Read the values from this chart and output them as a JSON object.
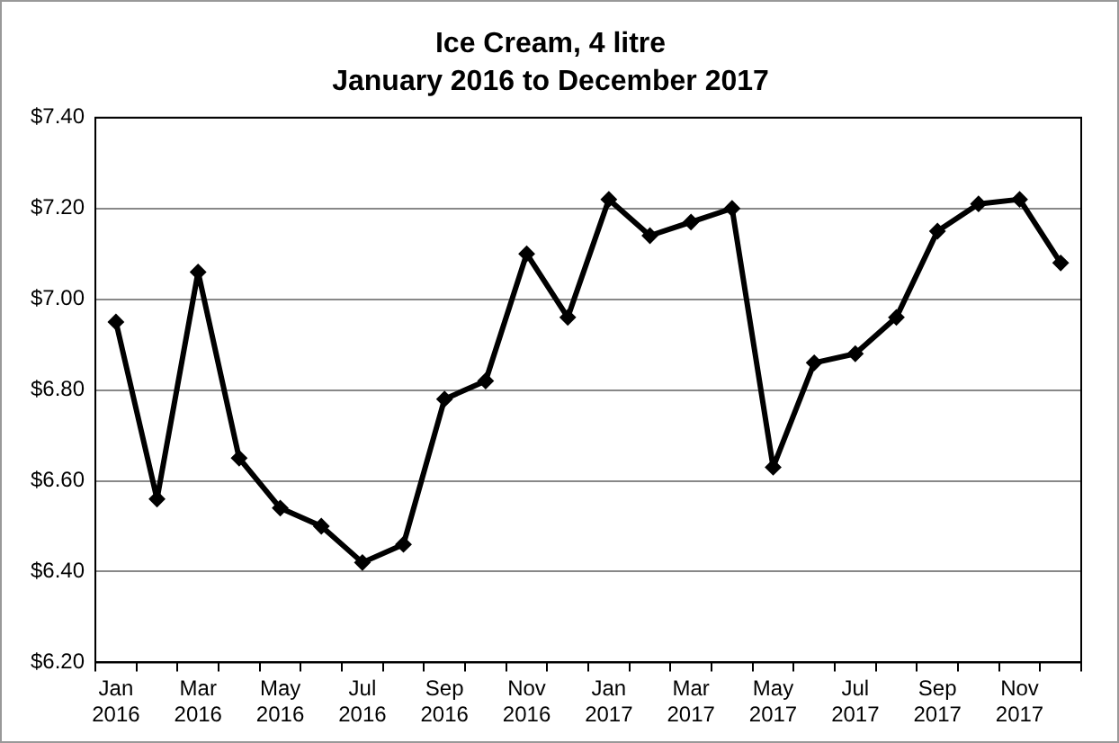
{
  "chart_data": {
    "type": "line",
    "title": "Ice Cream, 4 litre",
    "subtitle": "January 2016 to December 2017",
    "categories": [
      "Jan 2016",
      null,
      "Mar 2016",
      null,
      "May 2016",
      null,
      "Jul 2016",
      null,
      "Sep 2016",
      null,
      "Nov 2016",
      null,
      "Jan 2017",
      null,
      "Mar 2017",
      null,
      "May 2017",
      null,
      "Jul 2017",
      null,
      "Sep 2017",
      null,
      "Nov 2017",
      null
    ],
    "series": [
      {
        "color": "#000000",
        "values": [
          6.95,
          6.56,
          7.06,
          6.65,
          6.54,
          6.5,
          6.42,
          6.46,
          6.78,
          6.82,
          7.1,
          6.96,
          7.22,
          7.14,
          7.17,
          7.2,
          6.63,
          6.86,
          6.88,
          6.96,
          7.15,
          7.21,
          7.22,
          7.08
        ]
      }
    ],
    "ylim": [
      6.2,
      7.4
    ],
    "yticks": [
      {
        "value": 6.2,
        "label": "$6.20"
      },
      {
        "value": 6.4,
        "label": "$6.40"
      },
      {
        "value": 6.6,
        "label": "$6.60"
      },
      {
        "value": 6.8,
        "label": "$6.80"
      },
      {
        "value": 7.0,
        "label": "$7.00"
      },
      {
        "value": 7.2,
        "label": "$7.20"
      },
      {
        "value": 7.4,
        "label": "$7.40"
      }
    ],
    "grid": "y",
    "legend": false,
    "marker": "diamond",
    "line_style": "solid"
  }
}
